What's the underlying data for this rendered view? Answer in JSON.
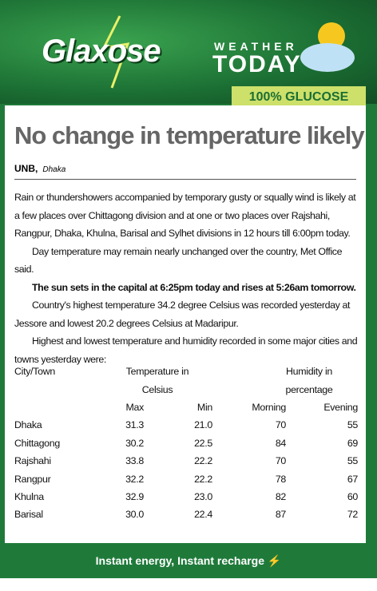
{
  "header": {
    "logo": "Glaxose",
    "badge_top": "WEATHER",
    "badge_bottom": "TODAY",
    "tagline": "100% GLUCOSE"
  },
  "article": {
    "title": "No change in temperature likely",
    "byline": {
      "agency": "UNB,",
      "place": "Dhaka"
    },
    "paragraphs": [
      "Rain or thundershowers accompanied by temporary gusty or squally wind is likely at a few places over Chittagong division and at one or two places over Rajshahi, Rangpur, Dhaka, Khulna, Barisal and Sylhet divisions in 12 hours till 6:00pm today.",
      "Day temperature may remain nearly unchanged over the country, Met Office said.",
      "The sun sets in the capital at 6:25pm today and rises at 5:26am tomorrow.",
      "Country's highest temperature 34.2 degree Celsius was recorded yesterday at Jessore and lowest 20.2 degrees Celsius at Madaripur.",
      "Highest and lowest temperature and humidity recorded in some major cities and towns yesterday were:"
    ]
  },
  "table": {
    "city_header": "City/Town",
    "temperature_header": [
      "Temperature in",
      "Celsius"
    ],
    "humidity_header": [
      "Humidity in",
      "percentage"
    ],
    "subheaders": [
      "Max",
      "Min",
      "Morning",
      "Evening"
    ],
    "rows": [
      [
        "Dhaka",
        "31.3",
        "21.0",
        "70",
        "55"
      ],
      [
        "Chittagong",
        "30.2",
        "22.5",
        "84",
        "69"
      ],
      [
        "Rajshahi",
        "33.8",
        "22.2",
        "70",
        "55"
      ],
      [
        "Rangpur",
        "32.2",
        "22.2",
        "78",
        "67"
      ],
      [
        "Khulna",
        "32.9",
        "23.0",
        "82",
        "60"
      ],
      [
        "Barisal",
        "30.0",
        "22.4",
        "87",
        "72"
      ]
    ]
  },
  "footer": {
    "slogan": "Instant energy, Instant recharge"
  }
}
